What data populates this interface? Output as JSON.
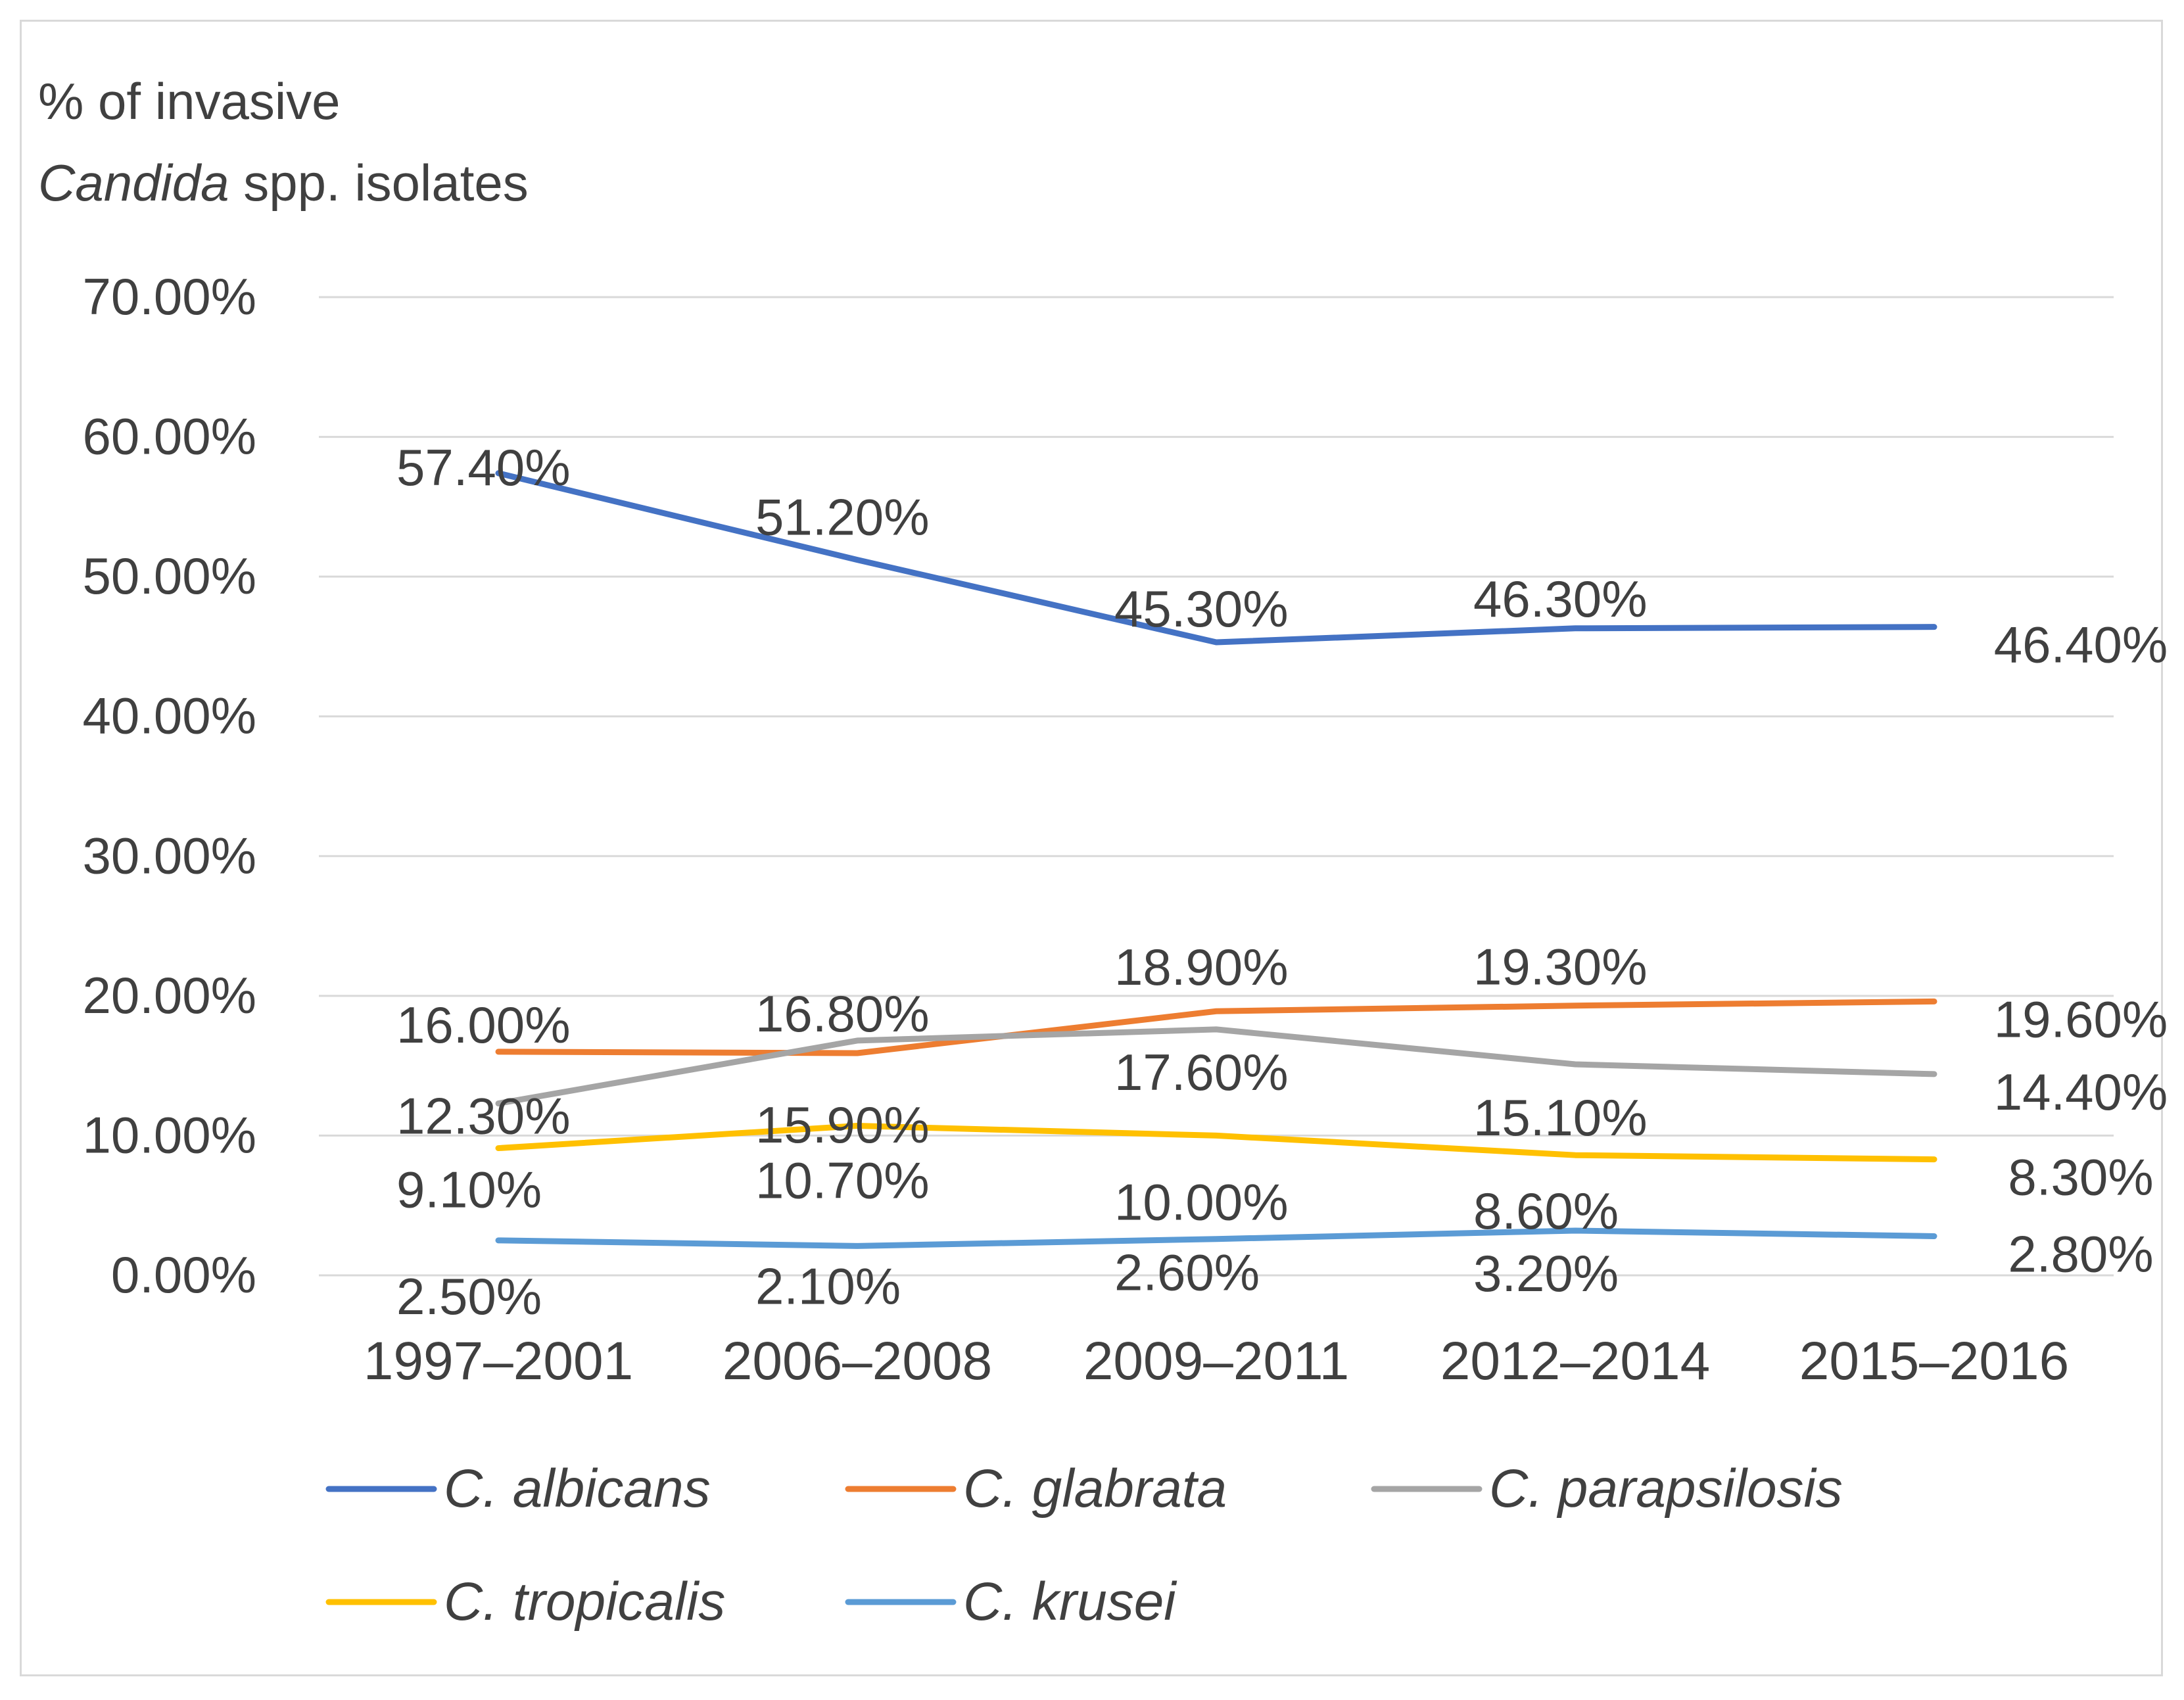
{
  "chart_data": {
    "type": "line",
    "title": "",
    "ylabel": {
      "line1": "% of invasive",
      "line2_italic": "Candida",
      "line2_rest": " spp. isolates"
    },
    "xlabel": "",
    "categories": [
      "1997–2001",
      "2006–2008",
      "2009–2011",
      "2012–2014",
      "2015–2016"
    ],
    "ylim": [
      0,
      70
    ],
    "yticks": [
      {
        "value": 0,
        "label": "0.00%"
      },
      {
        "value": 10,
        "label": "10.00%"
      },
      {
        "value": 20,
        "label": "20.00%"
      },
      {
        "value": 30,
        "label": "30.00%"
      },
      {
        "value": 40,
        "label": "40.00%"
      },
      {
        "value": 50,
        "label": "50.00%"
      },
      {
        "value": 60,
        "label": "60.00%"
      },
      {
        "value": 70,
        "label": "70.00%"
      }
    ],
    "grid": true,
    "legend_position": "bottom",
    "series": [
      {
        "name": "C. albicans",
        "color": "#4472c4",
        "values": [
          57.4,
          51.2,
          45.3,
          46.3,
          46.4
        ],
        "labels": [
          "57.40%",
          "51.20%",
          "45.30%",
          "46.30%",
          "46.40%"
        ]
      },
      {
        "name": "C. glabrata",
        "color": "#ed7d31",
        "values": [
          16.0,
          15.9,
          18.9,
          19.3,
          19.6
        ],
        "labels": [
          "16.00%",
          "15.90%",
          "18.90%",
          "19.30%",
          "19.60%"
        ]
      },
      {
        "name": "C. parapsilosis",
        "color": "#a5a5a5",
        "values": [
          12.3,
          16.8,
          17.6,
          15.1,
          14.4
        ],
        "labels": [
          "12.30%",
          "16.80%",
          "17.60%",
          "15.10%",
          "14.40%"
        ]
      },
      {
        "name": "C. tropicalis",
        "color": "#ffc000",
        "values": [
          9.1,
          10.7,
          10.0,
          8.6,
          8.3
        ],
        "labels": [
          "9.10%",
          "10.70%",
          "10.00%",
          "8.60%",
          "8.30%"
        ]
      },
      {
        "name": "C. krusei",
        "color": "#5b9bd5",
        "values": [
          2.5,
          2.1,
          2.6,
          3.2,
          2.8
        ],
        "labels": [
          "2.50%",
          "2.10%",
          "2.60%",
          "3.20%",
          "2.80%"
        ]
      }
    ]
  }
}
